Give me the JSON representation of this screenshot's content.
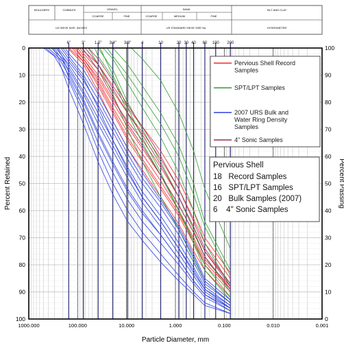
{
  "header": {
    "row1": [
      "BOULDERS",
      "COBBLES",
      "GRAVEL",
      "SAND",
      "SILT AND CLAY"
    ],
    "row2_gravel": [
      "COARSE",
      "FINE"
    ],
    "row2_sand": [
      "COARSE",
      "MEDIUM",
      "FINE"
    ],
    "row3": [
      "US SIEVE SIZE, INCHES",
      "US STANDARD SIEVE SIZE No.",
      "HYDROMETER"
    ]
  },
  "sieve_labels": [
    "6\"",
    "3\"",
    "1.5\"",
    "3/4\"",
    "3/8\"",
    "4",
    "10",
    "20",
    "30",
    "40",
    "60",
    "100",
    "200"
  ],
  "chart_data": {
    "type": "line",
    "xlabel": "Particle Diameter, mm",
    "ylabel_left": "Percent Retained",
    "ylabel_right": "Percent Passing",
    "x_scale": "log",
    "x_reversed": true,
    "xlim": [
      1000,
      0.001
    ],
    "ylim_left": [
      0,
      100
    ],
    "ylim_right": [
      100,
      0
    ],
    "x_tick_labels": [
      "1000.000",
      "100.000",
      "10.000",
      "1.000",
      "0.100",
      "0.010",
      "0.001"
    ],
    "y_tick_labels_left": [
      "0",
      "10",
      "20",
      "30",
      "40",
      "50",
      "60",
      "70",
      "80",
      "90",
      "100"
    ],
    "y_tick_labels_right": [
      "100",
      "90",
      "80",
      "70",
      "60",
      "50",
      "40",
      "30",
      "20",
      "10",
      "0"
    ],
    "grid": true,
    "legend_position": "top-right",
    "legend": [
      {
        "name": "Pervious Shell Record Samples",
        "color": "#ee2a2a"
      },
      {
        "name": "SPT/LPT Samples",
        "color": "#2f9e2f"
      },
      {
        "name": "2007 URS Bulk and Water Ring Density Samples",
        "color": "#2a3fe0"
      },
      {
        "name": "4\" Sonic Samples",
        "color": "#9a2a5a"
      }
    ],
    "summary_box": {
      "title": "Pervious Shell",
      "lines": [
        "18   Record Samples",
        "16   SPT/LPT Samples",
        "20   Bulk Samples (2007)",
        "6    4\" Sonic Samples"
      ]
    },
    "sieve_x_mm": [
      152.4,
      76.2,
      38.1,
      19.05,
      9.525,
      4.75,
      2.0,
      0.85,
      0.6,
      0.425,
      0.25,
      0.15,
      0.075
    ],
    "series": [
      {
        "group": "record",
        "color": "#ee2a2a",
        "x": [
          150,
          76.2,
          38.1,
          19.05,
          9.525,
          4.75,
          2.0,
          0.85,
          0.425,
          0.25,
          0.075
        ],
        "y": [
          0,
          5,
          14,
          24,
          34,
          42,
          52,
          62,
          72,
          80,
          90
        ]
      },
      {
        "group": "record",
        "color": "#ee2a2a",
        "x": [
          100,
          76.2,
          38.1,
          19.05,
          9.525,
          4.75,
          2.0,
          0.85,
          0.425,
          0.25,
          0.075
        ],
        "y": [
          0,
          3,
          10,
          19,
          27,
          34,
          44,
          55,
          66,
          75,
          87
        ]
      },
      {
        "group": "record",
        "color": "#ee2a2a",
        "x": [
          120,
          76.2,
          38.1,
          19.05,
          9.525,
          4.75,
          2.0,
          0.85,
          0.425,
          0.25,
          0.075
        ],
        "y": [
          0,
          4,
          12,
          22,
          31,
          39,
          49,
          60,
          70,
          78,
          88
        ]
      },
      {
        "group": "record",
        "color": "#ee2a2a",
        "x": [
          90,
          76.2,
          38.1,
          19.05,
          9.525,
          4.75,
          2.0,
          0.85,
          0.425,
          0.25,
          0.075
        ],
        "y": [
          0,
          2,
          8,
          16,
          24,
          31,
          41,
          52,
          63,
          72,
          85
        ]
      },
      {
        "group": "record",
        "color": "#ee2a2a",
        "x": [
          160,
          76.2,
          38.1,
          19.05,
          9.525,
          4.75,
          2.0,
          0.85,
          0.425,
          0.25,
          0.075
        ],
        "y": [
          0,
          6,
          16,
          27,
          37,
          45,
          55,
          65,
          75,
          82,
          92
        ]
      },
      {
        "group": "record",
        "color": "#ee2a2a",
        "x": [
          110,
          76.2,
          38.1,
          19.05,
          9.525,
          4.75,
          2.0,
          0.85,
          0.425,
          0.25,
          0.075
        ],
        "y": [
          0,
          4,
          11,
          20,
          29,
          37,
          47,
          58,
          68,
          77,
          89
        ]
      },
      {
        "group": "record",
        "color": "#ee2a2a",
        "x": [
          80,
          76.2,
          38.1,
          19.05,
          9.525,
          4.75,
          2.0,
          0.85,
          0.425,
          0.25,
          0.075
        ],
        "y": [
          0,
          1,
          6,
          14,
          22,
          29,
          38,
          49,
          60,
          70,
          83
        ]
      },
      {
        "group": "record",
        "color": "#ee2a2a",
        "x": [
          130,
          76.2,
          38.1,
          19.05,
          9.525,
          4.75,
          2.0,
          0.85,
          0.425,
          0.25,
          0.075
        ],
        "y": [
          0,
          5,
          13,
          23,
          33,
          41,
          51,
          61,
          71,
          79,
          89
        ]
      },
      {
        "group": "spt",
        "color": "#2f9e2f",
        "x": [
          38.1,
          19.05,
          9.525,
          4.75,
          2.0,
          0.85,
          0.425,
          0.25,
          0.075
        ],
        "y": [
          0,
          8,
          20,
          30,
          42,
          55,
          67,
          77,
          90
        ]
      },
      {
        "group": "spt",
        "color": "#2f9e2f",
        "x": [
          30,
          19.05,
          9.525,
          4.75,
          2.0,
          0.85,
          0.425,
          0.25,
          0.075
        ],
        "y": [
          0,
          4,
          13,
          22,
          33,
          46,
          60,
          72,
          88
        ]
      },
      {
        "group": "spt",
        "color": "#2f9e2f",
        "x": [
          19.05,
          9.525,
          4.75,
          2.0,
          0.85,
          0.425,
          0.25,
          0.075
        ],
        "y": [
          0,
          6,
          14,
          24,
          36,
          50,
          64,
          82
        ]
      },
      {
        "group": "spt",
        "color": "#2f9e2f",
        "x": [
          25,
          19.05,
          9.525,
          4.75,
          2.0,
          0.85,
          0.425,
          0.25,
          0.075
        ],
        "y": [
          0,
          3,
          10,
          18,
          28,
          40,
          54,
          66,
          84
        ]
      },
      {
        "group": "spt",
        "color": "#2f9e2f",
        "x": [
          45,
          38.1,
          19.05,
          9.525,
          4.75,
          2.0,
          0.85,
          0.425,
          0.25,
          0.075
        ],
        "y": [
          0,
          3,
          11,
          24,
          35,
          47,
          60,
          71,
          80,
          92
        ]
      },
      {
        "group": "spt",
        "color": "#2f9e2f",
        "x": [
          8,
          4.75,
          2.0,
          0.85,
          0.425,
          0.25,
          0.075
        ],
        "y": [
          0,
          4,
          12,
          24,
          38,
          52,
          74
        ]
      },
      {
        "group": "spt",
        "color": "#2f9e2f",
        "x": [
          60,
          38.1,
          19.05,
          9.525,
          4.75,
          2.0,
          0.85,
          0.425,
          0.25,
          0.075
        ],
        "y": [
          0,
          6,
          17,
          30,
          42,
          55,
          67,
          78,
          86,
          94
        ]
      },
      {
        "group": "spt",
        "color": "#2f9e2f",
        "x": [
          35,
          19.05,
          9.525,
          4.75,
          2.0,
          0.85,
          0.425,
          0.25,
          0.075
        ],
        "y": [
          0,
          10,
          22,
          33,
          46,
          60,
          72,
          82,
          93
        ]
      },
      {
        "group": "bulk",
        "color": "#2a3fe0",
        "x": [
          500,
          300,
          152.4,
          76.2,
          38.1,
          19.05,
          9.525,
          4.75,
          2.0,
          0.85,
          0.425,
          0.25,
          0.075
        ],
        "y": [
          0,
          3,
          12,
          24,
          38,
          50,
          60,
          68,
          76,
          84,
          90,
          94,
          98
        ]
      },
      {
        "group": "bulk",
        "color": "#2a3fe0",
        "x": [
          450,
          250,
          152.4,
          76.2,
          38.1,
          19.05,
          9.525,
          4.75,
          2.0,
          0.85,
          0.425,
          0.25,
          0.075
        ],
        "y": [
          0,
          4,
          15,
          28,
          42,
          54,
          64,
          71,
          79,
          86,
          91,
          95,
          98
        ]
      },
      {
        "group": "bulk",
        "color": "#2a3fe0",
        "x": [
          400,
          200,
          152.4,
          76.2,
          38.1,
          19.05,
          9.525,
          4.75,
          2.0,
          0.85,
          0.425,
          0.25,
          0.075
        ],
        "y": [
          0,
          5,
          11,
          22,
          35,
          46,
          56,
          64,
          72,
          80,
          87,
          92,
          97
        ]
      },
      {
        "group": "bulk",
        "color": "#2a3fe0",
        "x": [
          350,
          200,
          152.4,
          76.2,
          38.1,
          19.05,
          9.525,
          4.75,
          2.0,
          0.85,
          0.425,
          0.25,
          0.075
        ],
        "y": [
          0,
          4,
          9,
          19,
          31,
          42,
          52,
          60,
          69,
          78,
          86,
          91,
          96
        ]
      },
      {
        "group": "bulk",
        "color": "#2a3fe0",
        "x": [
          300,
          152.4,
          76.2,
          38.1,
          19.05,
          9.525,
          4.75,
          2.0,
          0.85,
          0.425,
          0.25,
          0.075
        ],
        "y": [
          0,
          8,
          17,
          28,
          38,
          48,
          57,
          66,
          76,
          84,
          90,
          96
        ]
      },
      {
        "group": "bulk",
        "color": "#2a3fe0",
        "x": [
          280,
          152.4,
          76.2,
          38.1,
          19.05,
          9.525,
          4.75,
          2.0,
          0.85,
          0.425,
          0.25,
          0.075
        ],
        "y": [
          0,
          6,
          14,
          24,
          34,
          44,
          53,
          62,
          72,
          81,
          88,
          95
        ]
      },
      {
        "group": "bulk",
        "color": "#2a3fe0",
        "x": [
          250,
          152.4,
          76.2,
          38.1,
          19.05,
          9.525,
          4.75,
          2.0,
          0.85,
          0.425,
          0.25,
          0.075
        ],
        "y": [
          0,
          5,
          12,
          21,
          31,
          41,
          50,
          59,
          69,
          79,
          87,
          94
        ]
      },
      {
        "group": "bulk",
        "color": "#2a3fe0",
        "x": [
          200,
          152.4,
          76.2,
          38.1,
          19.05,
          9.525,
          4.75,
          2.0,
          0.85,
          0.425,
          0.25,
          0.075
        ],
        "y": [
          0,
          3,
          10,
          19,
          29,
          39,
          48,
          57,
          67,
          77,
          86,
          94
        ]
      },
      {
        "group": "bulk",
        "color": "#2a3fe0",
        "x": [
          180,
          152.4,
          76.2,
          38.1,
          19.05,
          9.525,
          4.75,
          2.0,
          0.85,
          0.425,
          0.25,
          0.075
        ],
        "y": [
          0,
          2,
          8,
          17,
          27,
          37,
          46,
          56,
          66,
          76,
          85,
          93
        ]
      },
      {
        "group": "bulk",
        "color": "#2a3fe0",
        "x": [
          220,
          152.4,
          76.2,
          38.1,
          19.05,
          9.525,
          4.75,
          2.0,
          0.85,
          0.425,
          0.25,
          0.075
        ],
        "y": [
          0,
          4,
          11,
          22,
          34,
          45,
          55,
          64,
          74,
          83,
          89,
          96
        ]
      },
      {
        "group": "bulk",
        "color": "#2a3fe0",
        "x": [
          320,
          152.4,
          76.2,
          38.1,
          19.05,
          9.525,
          4.75,
          2.0,
          0.85,
          0.425,
          0.25,
          0.075
        ],
        "y": [
          0,
          10,
          20,
          32,
          43,
          53,
          61,
          69,
          78,
          86,
          91,
          97
        ]
      },
      {
        "group": "bulk",
        "color": "#2a3fe0",
        "x": [
          260,
          152.4,
          76.2,
          38.1,
          19.05,
          9.525,
          4.75,
          2.0,
          0.85,
          0.425,
          0.25,
          0.075
        ],
        "y": [
          0,
          7,
          16,
          26,
          36,
          46,
          55,
          64,
          74,
          82,
          89,
          95
        ]
      },
      {
        "group": "sonic",
        "color": "#9a2a5a",
        "x": [
          70,
          38.1,
          19.05,
          9.525,
          4.75,
          2.0,
          0.85,
          0.425,
          0.25,
          0.075
        ],
        "y": [
          0,
          6,
          15,
          24,
          32,
          43,
          55,
          66,
          75,
          88
        ]
      },
      {
        "group": "sonic",
        "color": "#9a2a5a",
        "x": [
          60,
          38.1,
          19.05,
          9.525,
          4.75,
          2.0,
          0.85,
          0.425,
          0.25,
          0.075
        ],
        "y": [
          0,
          4,
          12,
          21,
          29,
          40,
          52,
          64,
          74,
          87
        ]
      },
      {
        "group": "sonic",
        "color": "#9a2a5a",
        "x": [
          80,
          38.1,
          19.05,
          9.525,
          4.75,
          2.0,
          0.85,
          0.425,
          0.25,
          0.075
        ],
        "y": [
          0,
          8,
          18,
          28,
          36,
          47,
          58,
          68,
          77,
          89
        ]
      }
    ]
  }
}
